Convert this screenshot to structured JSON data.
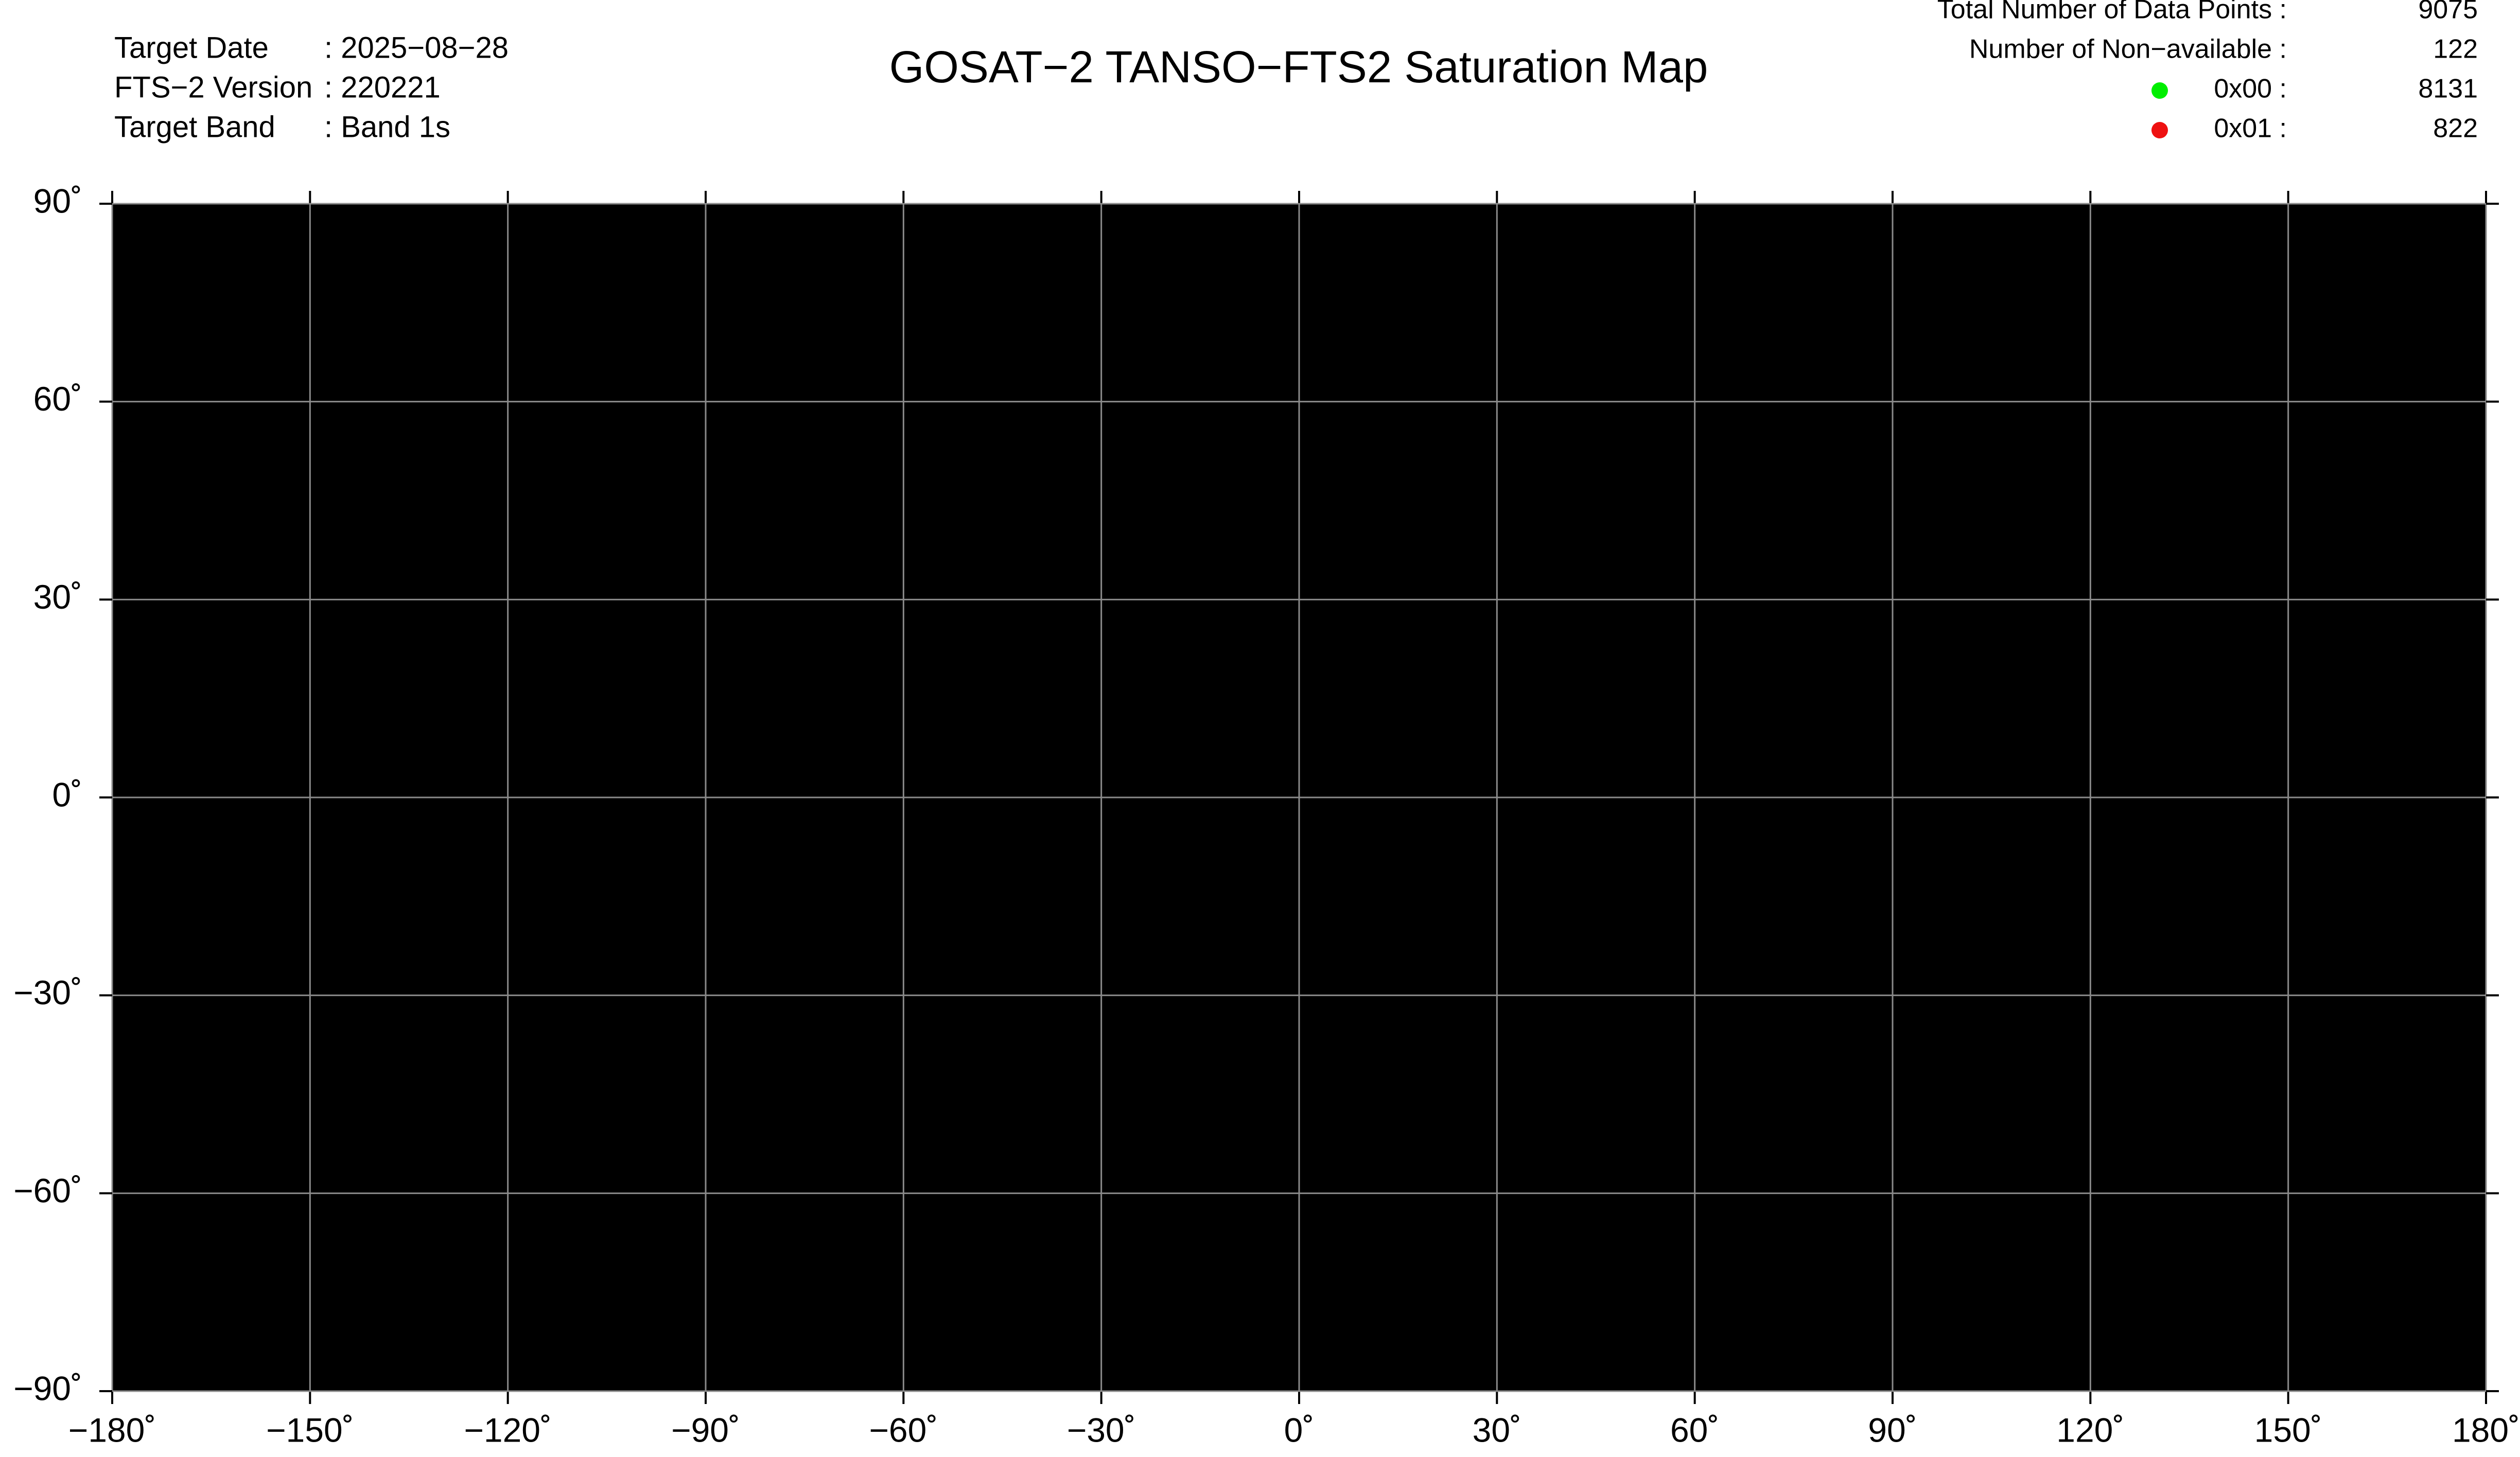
{
  "header": {
    "title": "GOSAT−2 TANSO−FTS2 Saturation Map",
    "info": [
      {
        "label": "Target Date",
        "value": ": 2025−08−28"
      },
      {
        "label": "FTS−2 Version",
        "value": ": 220221"
      },
      {
        "label": "Target Band",
        "value": ": Band 1s"
      }
    ]
  },
  "stats": [
    {
      "label": "Total Number of Data Points :",
      "value": "9075"
    },
    {
      "label": "Number of Non−available :",
      "value": "122"
    }
  ],
  "legend": [
    {
      "label": "0x00 :",
      "value": "8131",
      "color": "#00ee00"
    },
    {
      "label": "0x01 :",
      "value": "822",
      "color": "#ee1111"
    }
  ],
  "map": {
    "xlim": [
      -180,
      180
    ],
    "ylim": [
      -90,
      90
    ],
    "grid": true,
    "xticks": [
      {
        "value": -180,
        "label": "−180˚"
      },
      {
        "value": -150,
        "label": "−150˚"
      },
      {
        "value": -120,
        "label": "−120˚"
      },
      {
        "value": -90,
        "label": "−90˚"
      },
      {
        "value": -60,
        "label": "−60˚"
      },
      {
        "value": -30,
        "label": "−30˚"
      },
      {
        "value": 0,
        "label": "0˚"
      },
      {
        "value": 30,
        "label": "30˚"
      },
      {
        "value": 60,
        "label": "60˚"
      },
      {
        "value": 90,
        "label": "90˚"
      },
      {
        "value": 120,
        "label": "120˚"
      },
      {
        "value": 150,
        "label": "150˚"
      },
      {
        "value": 180,
        "label": "180˚"
      }
    ],
    "yticks": [
      {
        "value": -90,
        "label": "−90˚"
      },
      {
        "value": -60,
        "label": "−60˚"
      },
      {
        "value": -30,
        "label": "−30˚"
      },
      {
        "value": 0,
        "label": "0˚"
      },
      {
        "value": 30,
        "label": "30˚"
      },
      {
        "value": 60,
        "label": "60˚"
      },
      {
        "value": 90,
        "label": "90˚"
      }
    ]
  }
}
